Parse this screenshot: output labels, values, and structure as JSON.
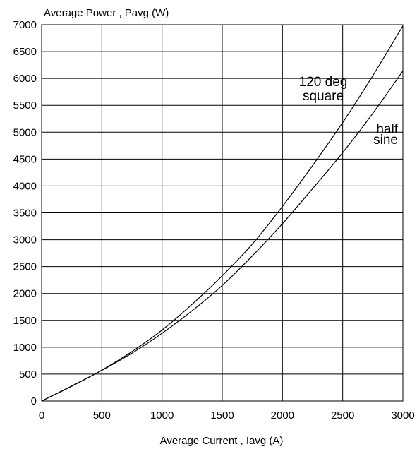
{
  "chart_data": {
    "type": "line",
    "title": "",
    "ylabel": "Average Power , Pavg (W)",
    "xlabel": "Average Current , Iavg (A)",
    "xlim": [
      0,
      3000
    ],
    "ylim": [
      0,
      7000
    ],
    "x_ticks": [
      0,
      500,
      1000,
      1500,
      2000,
      2500,
      3000
    ],
    "y_ticks": [
      0,
      500,
      1000,
      1500,
      2000,
      2500,
      3000,
      3500,
      4000,
      4500,
      5000,
      5500,
      6000,
      6500,
      7000
    ],
    "grid": true,
    "series": [
      {
        "name": "120 deg square",
        "label_lines": [
          "120 deg",
          "square"
        ],
        "x": [
          0,
          250,
          500,
          750,
          1000,
          1250,
          1500,
          1750,
          2000,
          2250,
          2500,
          2750,
          3000
        ],
        "y": [
          0,
          275,
          575,
          920,
          1320,
          1800,
          2330,
          2920,
          3620,
          4380,
          5180,
          6050,
          6980
        ]
      },
      {
        "name": "half sine",
        "label_lines": [
          "half",
          "sine"
        ],
        "x": [
          0,
          250,
          500,
          750,
          1000,
          1250,
          1500,
          1750,
          2000,
          2250,
          2500,
          2750,
          3000
        ],
        "y": [
          0,
          280,
          570,
          890,
          1260,
          1680,
          2150,
          2700,
          3300,
          3950,
          4620,
          5350,
          6140
        ]
      }
    ]
  }
}
